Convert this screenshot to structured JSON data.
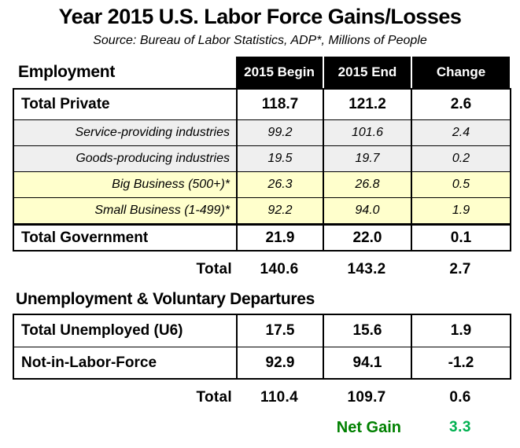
{
  "title": "Year 2015 U.S. Labor Force Gains/Losses",
  "source": "Source: Bureau of Labor Statistics, ADP*, Millions of People",
  "employment_table": {
    "header": {
      "label": "Employment",
      "begin": "2015 Begin",
      "end": "2015 End",
      "change": "Change"
    },
    "rows": [
      {
        "label": "Total Private",
        "begin": "118.7",
        "end": "121.2",
        "change": "2.6"
      },
      {
        "label": "Service-providing industries",
        "begin": "99.2",
        "end": "101.6",
        "change": "2.4"
      },
      {
        "label": "Goods-producing industries",
        "begin": "19.5",
        "end": "19.7",
        "change": "0.2"
      },
      {
        "label": "Big Business (500+)*",
        "begin": "26.3",
        "end": "26.8",
        "change": "0.5"
      },
      {
        "label": "Small Business (1-499)*",
        "begin": "92.2",
        "end": "94.0",
        "change": "1.9"
      },
      {
        "label": "Total Government",
        "begin": "21.9",
        "end": "22.0",
        "change": "0.1"
      }
    ],
    "total_row": {
      "label": "Total",
      "begin": "140.6",
      "end": "143.2",
      "change": "2.7"
    }
  },
  "unemployment_table": {
    "section_title": "Unemployment & Voluntary Departures",
    "rows": [
      {
        "label": "Total Unemployed (U6)",
        "begin": "17.5",
        "end": "15.6",
        "change": "1.9"
      },
      {
        "label": "Not-in-Labor-Force",
        "begin": "92.9",
        "end": "94.1",
        "change": "-1.2"
      }
    ],
    "total_row": {
      "label": "Total",
      "begin": "110.4",
      "end": "109.7",
      "change": "0.6"
    },
    "net_gain": {
      "label": "Net Gain",
      "value": "3.3"
    }
  },
  "colors": {
    "header_bg": "#000000",
    "header_text": "#ffffff",
    "subrow_gray": "#efefef",
    "subrow_yellow": "#ffffcc",
    "net_gain_label": "#008000",
    "net_gain_value": "#00b050",
    "border": "#000000"
  },
  "chart_data": {
    "type": "table",
    "title": "Year 2015 U.S. Labor Force Gains/Losses",
    "subtitle": "Source: Bureau of Labor Statistics, ADP*, Millions of People",
    "units": "Millions of People",
    "columns": [
      "Employment",
      "2015 Begin",
      "2015 End",
      "Change"
    ],
    "sections": [
      {
        "name": "Employment",
        "rows": [
          [
            "Total Private",
            118.7,
            121.2,
            2.6
          ],
          [
            "Service-providing industries",
            99.2,
            101.6,
            2.4
          ],
          [
            "Goods-producing industries",
            19.5,
            19.7,
            0.2
          ],
          [
            "Big Business (500+)*",
            26.3,
            26.8,
            0.5
          ],
          [
            "Small Business (1-499)*",
            92.2,
            94.0,
            1.9
          ],
          [
            "Total Government",
            21.9,
            22.0,
            0.1
          ],
          [
            "Total",
            140.6,
            143.2,
            2.7
          ]
        ]
      },
      {
        "name": "Unemployment & Voluntary Departures",
        "rows": [
          [
            "Total Unemployed (U6)",
            17.5,
            15.6,
            1.9
          ],
          [
            "Not-in-Labor-Force",
            92.9,
            94.1,
            -1.2
          ],
          [
            "Total",
            110.4,
            109.7,
            0.6
          ],
          [
            "Net Gain",
            null,
            null,
            3.3
          ]
        ]
      }
    ]
  }
}
